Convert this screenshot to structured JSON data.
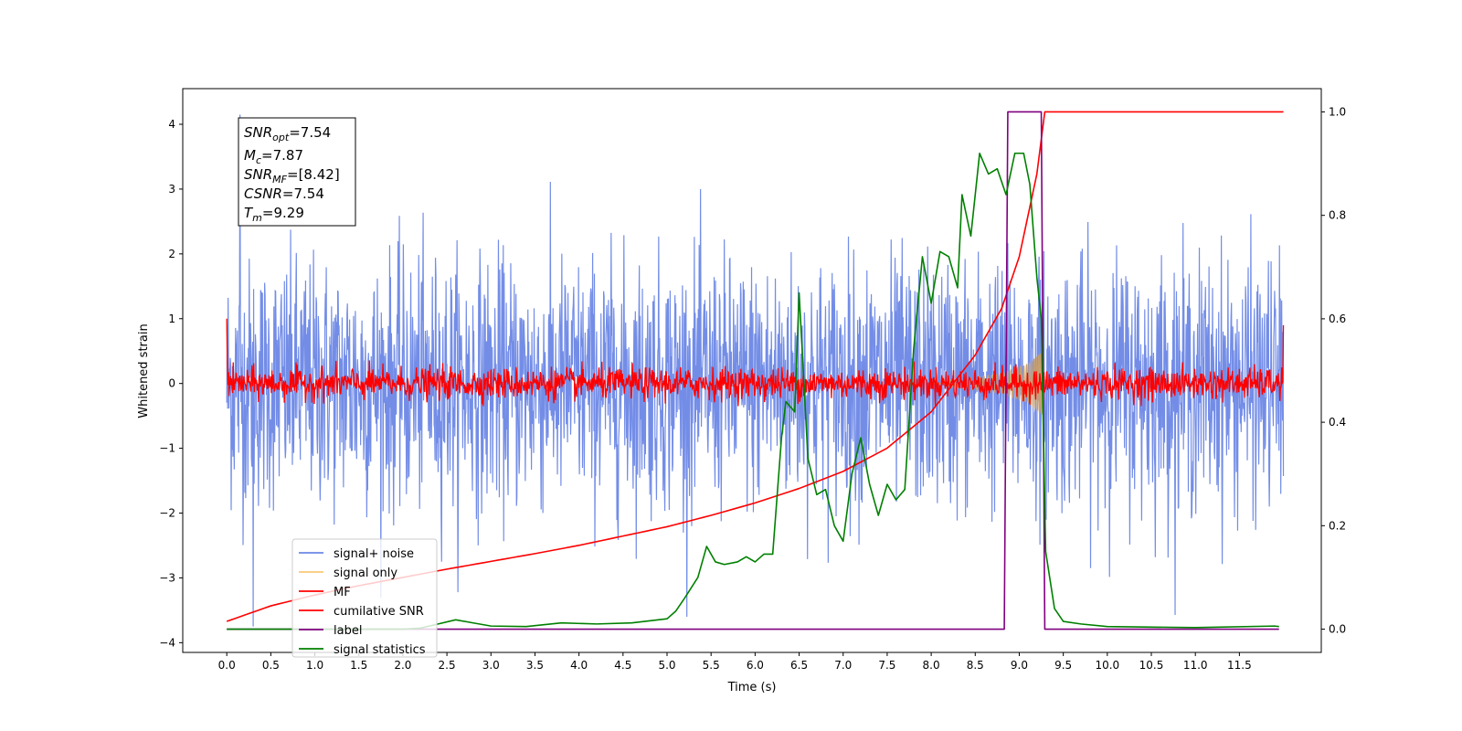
{
  "chart_data": {
    "type": "line",
    "xlabel": "Time (s)",
    "ylabel": "Whitened strain",
    "xlim": [
      -0.5,
      12.43
    ],
    "ylim": [
      -4.15,
      4.55
    ],
    "y2lim": [
      -0.045,
      1.045
    ],
    "x_ticks": [
      "0.0",
      "0.5",
      "1.0",
      "1.5",
      "2.0",
      "2.5",
      "3.0",
      "3.5",
      "4.0",
      "4.5",
      "5.0",
      "5.5",
      "6.0",
      "6.5",
      "7.0",
      "7.5",
      "8.0",
      "8.5",
      "9.0",
      "9.5",
      "10.0",
      "10.5",
      "11.0",
      "11.5"
    ],
    "y_ticks": [
      "4",
      "3",
      "2",
      "1",
      "0",
      "−1",
      "−2",
      "−3",
      "−4"
    ],
    "y2_ticks": [
      "1.0",
      "0.8",
      "0.6",
      "0.4",
      "0.2",
      "0.0"
    ],
    "annotation": {
      "snr_opt": {
        "base": "SNR",
        "sub": "opt",
        "value": "=7.54"
      },
      "mc": {
        "base": "M",
        "sub": "c",
        "value": "=7.87"
      },
      "snr_mf": {
        "base": "SNR",
        "sub": "MF",
        "value": "=[8.42]"
      },
      "csnr": {
        "base": "CSNR",
        "value": "=7.54"
      },
      "tm": {
        "base": "T",
        "sub": "m",
        "value": "=9.29"
      }
    },
    "legend": {
      "position": "lower-left",
      "entries": [
        {
          "label": "signal+ noise",
          "color": "#6c87e6"
        },
        {
          "label": "signal only",
          "color": "#f9c878"
        },
        {
          "label": "MF",
          "color": "#ff0000"
        },
        {
          "label": "cumilative SNR",
          "color": "#ff0000"
        },
        {
          "label": "label",
          "color": "#800080"
        },
        {
          "label": "signal statistics",
          "color": "#008000"
        }
      ]
    },
    "series": [
      {
        "name": "signal+ noise",
        "axis": "left",
        "color": "#6c87e6",
        "x_range": [
          0.0,
          12.0
        ],
        "std": 1.0,
        "peaks": [
          4.15,
          -3.75
        ]
      },
      {
        "name": "signal only",
        "axis": "left",
        "color": "#c8a070",
        "chirp_envelope": [
          [
            8.2,
            0.05
          ],
          [
            8.8,
            0.15
          ],
          [
            9.1,
            0.3
          ],
          [
            9.27,
            0.5
          ],
          [
            9.29,
            0.0
          ]
        ]
      },
      {
        "name": "MF",
        "axis": "left",
        "color": "#ff0000",
        "x_range": [
          0.0,
          12.0
        ],
        "std": 0.12,
        "endpoints": [
          1.0,
          0.9
        ]
      },
      {
        "name": "cumilative SNR",
        "axis": "right",
        "color": "#ff0000",
        "x": [
          0.0,
          0.5,
          1.0,
          1.5,
          2.0,
          2.5,
          3.0,
          3.5,
          4.0,
          4.5,
          5.0,
          5.5,
          6.0,
          6.5,
          7.0,
          7.5,
          8.0,
          8.5,
          8.8,
          9.0,
          9.2,
          9.29,
          12.0
        ],
        "y": [
          0.015,
          0.045,
          0.066,
          0.084,
          0.1,
          0.116,
          0.131,
          0.146,
          0.162,
          0.18,
          0.198,
          0.22,
          0.244,
          0.272,
          0.305,
          0.35,
          0.42,
          0.53,
          0.62,
          0.72,
          0.88,
          1.0,
          1.0
        ]
      },
      {
        "name": "label",
        "axis": "right",
        "color": "#800080",
        "x": [
          0.0,
          8.83,
          8.87,
          9.25,
          9.29,
          11.95
        ],
        "y": [
          0.0,
          0.0,
          1.0,
          1.0,
          0.0,
          0.0
        ]
      },
      {
        "name": "signal statistics",
        "axis": "right",
        "color": "#008000",
        "x": [
          0.0,
          2.0,
          2.2,
          2.4,
          2.6,
          2.8,
          3.0,
          3.4,
          3.8,
          4.2,
          4.6,
          5.0,
          5.1,
          5.2,
          5.35,
          5.45,
          5.55,
          5.65,
          5.8,
          5.9,
          6.0,
          6.1,
          6.2,
          6.3,
          6.35,
          6.45,
          6.5,
          6.6,
          6.7,
          6.8,
          6.9,
          7.0,
          7.1,
          7.2,
          7.3,
          7.4,
          7.5,
          7.6,
          7.7,
          7.8,
          7.9,
          8.0,
          8.05,
          8.1,
          8.2,
          8.3,
          8.35,
          8.45,
          8.55,
          8.65,
          8.75,
          8.85,
          8.95,
          9.05,
          9.12,
          9.2,
          9.25,
          9.3,
          9.4,
          9.5,
          9.7,
          10.0,
          11.0,
          11.9,
          11.95
        ],
        "y": [
          0.0,
          0.0,
          0.002,
          0.01,
          0.018,
          0.012,
          0.006,
          0.005,
          0.012,
          0.01,
          0.012,
          0.02,
          0.035,
          0.06,
          0.1,
          0.16,
          0.13,
          0.125,
          0.13,
          0.14,
          0.13,
          0.145,
          0.145,
          0.37,
          0.44,
          0.42,
          0.65,
          0.33,
          0.26,
          0.27,
          0.2,
          0.17,
          0.3,
          0.37,
          0.28,
          0.22,
          0.28,
          0.25,
          0.27,
          0.54,
          0.72,
          0.63,
          0.68,
          0.73,
          0.72,
          0.66,
          0.84,
          0.76,
          0.92,
          0.88,
          0.89,
          0.84,
          0.92,
          0.92,
          0.86,
          0.68,
          0.6,
          0.15,
          0.04,
          0.015,
          0.01,
          0.005,
          0.003,
          0.006,
          0.005
        ]
      }
    ]
  }
}
